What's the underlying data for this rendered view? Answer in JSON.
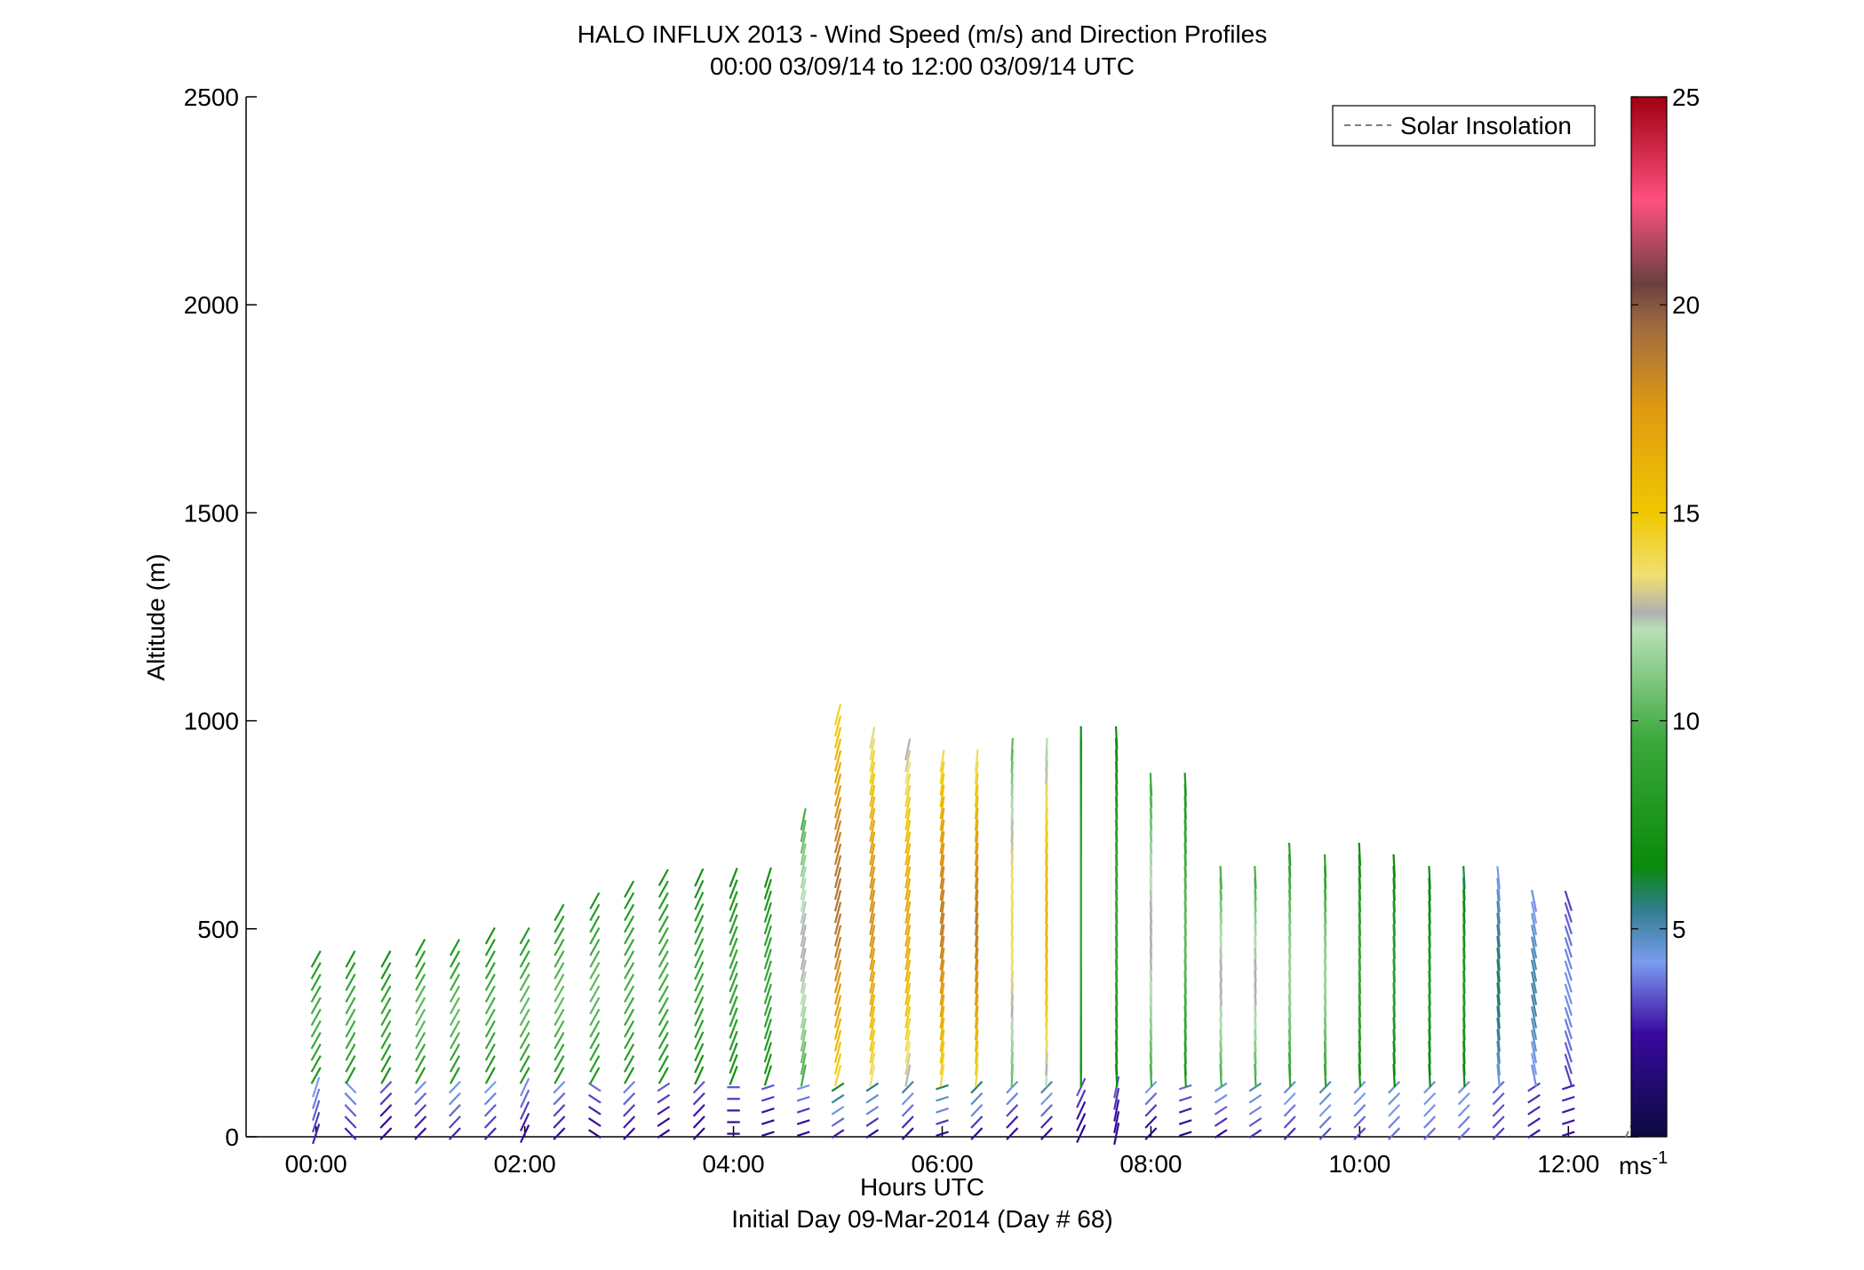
{
  "chart_data": {
    "type": "scatter",
    "title": "HALO INFLUX 2013 - Wind Speed (m/s) and Direction Profiles",
    "subtitle": "00:00 03/09/14 to 12:00 03/09/14  UTC",
    "xlabel": "Hours UTC",
    "xlabel2": "Initial Day 09-Mar-2014 (Day # 68)",
    "ylabel": "Altitude (m)",
    "xlim": [
      -0.67,
      12.67
    ],
    "ylim": [
      0,
      2500
    ],
    "x_ticks": [
      0,
      2,
      4,
      6,
      8,
      10,
      12
    ],
    "x_tick_labels": [
      "00:00",
      "02:00",
      "04:00",
      "06:00",
      "08:00",
      "10:00",
      "12:00"
    ],
    "y_ticks": [
      0,
      500,
      1000,
      1500,
      2000,
      2500
    ],
    "y_tick_labels": [
      "0",
      "500",
      "1000",
      "1500",
      "2000",
      "2500"
    ],
    "legend": {
      "entries": [
        "Solar Insolation"
      ],
      "placement": "top-right",
      "line_style": "dashed",
      "color": "#7f7f7f"
    },
    "colorbar": {
      "range": [
        0,
        25
      ],
      "ticks": [
        5,
        10,
        15,
        20,
        25
      ],
      "tick_labels": [
        "5",
        "10",
        "15",
        "20",
        "25"
      ],
      "unit_label": "ms",
      "unit_exp": "-1",
      "colors": [
        {
          "v": 0,
          "c": "#0a0a40"
        },
        {
          "v": 2.5,
          "c": "#3a0aa0"
        },
        {
          "v": 4.2,
          "c": "#7a9cf0"
        },
        {
          "v": 5.5,
          "c": "#2e7d8a"
        },
        {
          "v": 6.5,
          "c": "#0a8a0a"
        },
        {
          "v": 9.5,
          "c": "#3aa83a"
        },
        {
          "v": 12.2,
          "c": "#b8e0b8"
        },
        {
          "v": 12.6,
          "c": "#b0b0b0"
        },
        {
          "v": 13.5,
          "c": "#f0e070"
        },
        {
          "v": 15,
          "c": "#f0c800"
        },
        {
          "v": 17.5,
          "c": "#e09a10"
        },
        {
          "v": 19.5,
          "c": "#a06a40"
        },
        {
          "v": 20.5,
          "c": "#6a4040"
        },
        {
          "v": 22.5,
          "c": "#ff5080"
        },
        {
          "v": 25,
          "c": "#a00010"
        }
      ]
    },
    "series": [
      {
        "name": "Solar Insolation",
        "x": [
          12.55,
          12.67
        ],
        "y": [
          0,
          60
        ]
      }
    ],
    "profiles": [
      {
        "t": 0.0,
        "top": 460,
        "upper": {
          "spd": 8.5,
          "dir": 315
        },
        "lower": {
          "spd": 2.5,
          "dir": 330
        }
      },
      {
        "t": 0.33,
        "top": 460,
        "upper": {
          "spd": 8.5,
          "dir": 315
        },
        "lower": {
          "spd": 2.5,
          "dir": 240
        }
      },
      {
        "t": 0.67,
        "top": 460,
        "upper": {
          "spd": 8.0,
          "dir": 315
        },
        "lower": {
          "spd": 1.5,
          "dir": 300
        }
      },
      {
        "t": 1.0,
        "top": 470,
        "upper": {
          "spd": 9.0,
          "dir": 315
        },
        "lower": {
          "spd": 2.0,
          "dir": 300
        }
      },
      {
        "t": 1.33,
        "top": 480,
        "upper": {
          "spd": 9.0,
          "dir": 315
        },
        "lower": {
          "spd": 2.5,
          "dir": 300
        }
      },
      {
        "t": 1.67,
        "top": 500,
        "upper": {
          "spd": 8.5,
          "dir": 315
        },
        "lower": {
          "spd": 2.5,
          "dir": 300
        }
      },
      {
        "t": 2.0,
        "top": 520,
        "upper": {
          "spd": 9.0,
          "dir": 315
        },
        "lower": {
          "spd": 2.0,
          "dir": 320
        }
      },
      {
        "t": 2.33,
        "top": 560,
        "upper": {
          "spd": 9.0,
          "dir": 315
        },
        "lower": {
          "spd": 2.0,
          "dir": 300
        }
      },
      {
        "t": 2.67,
        "top": 590,
        "upper": {
          "spd": 9.0,
          "dir": 315
        },
        "lower": {
          "spd": 1.5,
          "dir": 250
        }
      },
      {
        "t": 3.0,
        "top": 620,
        "upper": {
          "spd": 8.5,
          "dir": 315
        },
        "lower": {
          "spd": 2.0,
          "dir": 300
        }
      },
      {
        "t": 3.33,
        "top": 660,
        "upper": {
          "spd": 8.5,
          "dir": 315
        },
        "lower": {
          "spd": 1.5,
          "dir": 290
        }
      },
      {
        "t": 3.67,
        "top": 660,
        "upper": {
          "spd": 8.0,
          "dir": 320
        },
        "lower": {
          "spd": 1.5,
          "dir": 300
        }
      },
      {
        "t": 4.0,
        "top": 660,
        "upper": {
          "spd": 8.0,
          "dir": 325
        },
        "lower": {
          "spd": 1.5,
          "dir": 270
        }
      },
      {
        "t": 4.33,
        "top": 660,
        "upper": {
          "spd": 8.0,
          "dir": 330
        },
        "lower": {
          "spd": 1.5,
          "dir": 280
        }
      },
      {
        "t": 4.67,
        "top": 800,
        "upper": {
          "spd": 11.0,
          "dir": 340
        },
        "lower": {
          "spd": 1.5,
          "dir": 280
        }
      },
      {
        "t": 5.0,
        "top": 1050,
        "upper": {
          "spd": 16.5,
          "dir": 335
        },
        "lower": {
          "spd": 2.0,
          "dir": 290
        }
      },
      {
        "t": 5.33,
        "top": 980,
        "upper": {
          "spd": 15.5,
          "dir": 340
        },
        "lower": {
          "spd": 1.5,
          "dir": 290
        }
      },
      {
        "t": 5.67,
        "top": 960,
        "upper": {
          "spd": 14.5,
          "dir": 340
        },
        "lower": {
          "spd": 1.5,
          "dir": 300
        }
      },
      {
        "t": 6.0,
        "top": 940,
        "upper": {
          "spd": 16.0,
          "dir": 345
        },
        "lower": {
          "spd": 1.5,
          "dir": 280
        }
      },
      {
        "t": 6.33,
        "top": 920,
        "upper": {
          "spd": 16.0,
          "dir": 350
        },
        "lower": {
          "spd": 1.5,
          "dir": 300
        }
      },
      {
        "t": 6.67,
        "top": 950,
        "upper": {
          "spd": 12.0,
          "dir": 355
        },
        "lower": {
          "spd": 1.5,
          "dir": 300
        }
      },
      {
        "t": 7.0,
        "top": 950,
        "upper": {
          "spd": 14.0,
          "dir": 355
        },
        "lower": {
          "spd": 1.5,
          "dir": 300
        }
      },
      {
        "t": 7.33,
        "top": 980,
        "upper": {
          "spd": 8.0,
          "dir": 360
        },
        "lower": {
          "spd": 1.5,
          "dir": 320
        }
      },
      {
        "t": 7.67,
        "top": 980,
        "upper": {
          "spd": 8.0,
          "dir": 5
        },
        "lower": {
          "spd": 1.5,
          "dir": 340
        }
      },
      {
        "t": 8.0,
        "top": 880,
        "upper": {
          "spd": 11.0,
          "dir": 5
        },
        "lower": {
          "spd": 1.5,
          "dir": 300
        }
      },
      {
        "t": 8.33,
        "top": 880,
        "upper": {
          "spd": 9.0,
          "dir": 5
        },
        "lower": {
          "spd": 1.5,
          "dir": 280
        }
      },
      {
        "t": 8.67,
        "top": 660,
        "upper": {
          "spd": 11.0,
          "dir": 5
        },
        "lower": {
          "spd": 2.0,
          "dir": 290
        }
      },
      {
        "t": 9.0,
        "top": 660,
        "upper": {
          "spd": 11.0,
          "dir": 5
        },
        "lower": {
          "spd": 2.5,
          "dir": 290
        }
      },
      {
        "t": 9.33,
        "top": 700,
        "upper": {
          "spd": 10.0,
          "dir": 5
        },
        "lower": {
          "spd": 2.5,
          "dir": 300
        }
      },
      {
        "t": 9.67,
        "top": 680,
        "upper": {
          "spd": 10.0,
          "dir": 5
        },
        "lower": {
          "spd": 3.0,
          "dir": 300
        }
      },
      {
        "t": 10.0,
        "top": 700,
        "upper": {
          "spd": 8.0,
          "dir": 5
        },
        "lower": {
          "spd": 3.0,
          "dir": 300
        }
      },
      {
        "t": 10.33,
        "top": 680,
        "upper": {
          "spd": 7.5,
          "dir": 5
        },
        "lower": {
          "spd": 3.5,
          "dir": 300
        }
      },
      {
        "t": 10.67,
        "top": 660,
        "upper": {
          "spd": 7.0,
          "dir": 5
        },
        "lower": {
          "spd": 3.5,
          "dir": 300
        }
      },
      {
        "t": 11.0,
        "top": 640,
        "upper": {
          "spd": 7.0,
          "dir": 5
        },
        "lower": {
          "spd": 3.5,
          "dir": 300
        }
      },
      {
        "t": 11.33,
        "top": 640,
        "upper": {
          "spd": 5.0,
          "dir": 10
        },
        "lower": {
          "spd": 3.0,
          "dir": 300
        }
      },
      {
        "t": 11.67,
        "top": 600,
        "upper": {
          "spd": 4.5,
          "dir": 20
        },
        "lower": {
          "spd": 2.5,
          "dir": 290
        }
      },
      {
        "t": 12.0,
        "top": 600,
        "upper": {
          "spd": 3.5,
          "dir": 30
        },
        "lower": {
          "spd": 2.5,
          "dir": 280
        }
      }
    ]
  }
}
